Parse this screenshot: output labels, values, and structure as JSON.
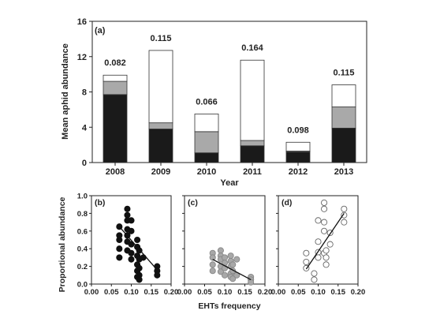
{
  "chart_data": [
    {
      "type": "bar",
      "stacked": true,
      "panel_label": "(a)",
      "xlabel": "Year",
      "ylabel": "Mean aphid abundance",
      "ylim": [
        0,
        16
      ],
      "yticks": [
        "0",
        "4",
        "8",
        "12",
        "16"
      ],
      "categories": [
        "2008",
        "2009",
        "2010",
        "2011",
        "2012",
        "2013"
      ],
      "annotations": [
        "0.082",
        "0.115",
        "0.066",
        "0.164",
        "0.098",
        "0.115"
      ],
      "series": [
        {
          "color": "#1a1a1a",
          "values": [
            7.7,
            3.8,
            1.1,
            1.9,
            1.2,
            3.9
          ]
        },
        {
          "color": "#a9a9a9",
          "values": [
            1.5,
            0.7,
            2.4,
            0.6,
            0.1,
            2.4
          ]
        },
        {
          "color": "#ffffff",
          "values": [
            0.7,
            8.2,
            2.0,
            9.1,
            1.0,
            2.5
          ]
        }
      ]
    },
    {
      "type": "scatter",
      "panel_label": "(b)",
      "marker": "filled-black",
      "xlim": [
        0,
        0.2
      ],
      "ylim": [
        0,
        1.0
      ],
      "points": [
        [
          0.07,
          0.3
        ],
        [
          0.07,
          0.4
        ],
        [
          0.07,
          0.5
        ],
        [
          0.07,
          0.55
        ],
        [
          0.07,
          0.65
        ],
        [
          0.09,
          0.85
        ],
        [
          0.09,
          0.78
        ],
        [
          0.09,
          0.72
        ],
        [
          0.09,
          0.62
        ],
        [
          0.09,
          0.55
        ],
        [
          0.09,
          0.48
        ],
        [
          0.09,
          0.38
        ],
        [
          0.1,
          0.72
        ],
        [
          0.1,
          0.6
        ],
        [
          0.1,
          0.45
        ],
        [
          0.1,
          0.35
        ],
        [
          0.1,
          0.28
        ],
        [
          0.115,
          0.5
        ],
        [
          0.115,
          0.42
        ],
        [
          0.115,
          0.32
        ],
        [
          0.115,
          0.22
        ],
        [
          0.115,
          0.15
        ],
        [
          0.115,
          0.08
        ],
        [
          0.12,
          0.38
        ],
        [
          0.12,
          0.28
        ],
        [
          0.12,
          0.18
        ],
        [
          0.12,
          0.1
        ],
        [
          0.12,
          0.05
        ],
        [
          0.13,
          0.3
        ],
        [
          0.165,
          0.2
        ],
        [
          0.165,
          0.15
        ],
        [
          0.165,
          0.1
        ]
      ],
      "fit": [
        [
          0.07,
          0.65
        ],
        [
          0.165,
          0.16
        ]
      ]
    },
    {
      "type": "scatter",
      "panel_label": "(c)",
      "marker": "filled-grey",
      "xlim": [
        0,
        0.2
      ],
      "ylim": [
        0,
        1.0
      ],
      "points": [
        [
          0.07,
          0.35
        ],
        [
          0.07,
          0.3
        ],
        [
          0.07,
          0.22
        ],
        [
          0.07,
          0.15
        ],
        [
          0.09,
          0.38
        ],
        [
          0.09,
          0.32
        ],
        [
          0.09,
          0.28
        ],
        [
          0.09,
          0.2
        ],
        [
          0.09,
          0.14
        ],
        [
          0.1,
          0.3
        ],
        [
          0.1,
          0.24
        ],
        [
          0.1,
          0.18
        ],
        [
          0.1,
          0.1
        ],
        [
          0.115,
          0.32
        ],
        [
          0.115,
          0.26
        ],
        [
          0.115,
          0.2
        ],
        [
          0.115,
          0.12
        ],
        [
          0.115,
          0.08
        ],
        [
          0.12,
          0.22
        ],
        [
          0.12,
          0.15
        ],
        [
          0.12,
          0.06
        ],
        [
          0.13,
          0.28
        ],
        [
          0.13,
          0.1
        ],
        [
          0.165,
          0.08
        ],
        [
          0.165,
          0.05
        ],
        [
          0.165,
          0.02
        ]
      ],
      "fit": [
        [
          0.07,
          0.28
        ],
        [
          0.165,
          0.05
        ]
      ]
    },
    {
      "type": "scatter",
      "panel_label": "(d)",
      "marker": "open",
      "xlim": [
        0,
        0.2
      ],
      "ylim": [
        0,
        1.0
      ],
      "points": [
        [
          0.07,
          0.35
        ],
        [
          0.07,
          0.25
        ],
        [
          0.07,
          0.18
        ],
        [
          0.09,
          0.12
        ],
        [
          0.09,
          0.05
        ],
        [
          0.1,
          0.72
        ],
        [
          0.1,
          0.48
        ],
        [
          0.1,
          0.36
        ],
        [
          0.1,
          0.3
        ],
        [
          0.115,
          0.92
        ],
        [
          0.115,
          0.85
        ],
        [
          0.115,
          0.7
        ],
        [
          0.115,
          0.6
        ],
        [
          0.115,
          0.35
        ],
        [
          0.12,
          0.38
        ],
        [
          0.12,
          0.3
        ],
        [
          0.12,
          0.22
        ],
        [
          0.13,
          0.58
        ],
        [
          0.13,
          0.45
        ],
        [
          0.165,
          0.85
        ],
        [
          0.165,
          0.78
        ],
        [
          0.165,
          0.7
        ]
      ],
      "fit": [
        [
          0.07,
          0.17
        ],
        [
          0.165,
          0.8
        ]
      ]
    }
  ],
  "lower_axes": {
    "ylabel": "Proportional abundance",
    "xlabel": "EHTs frequency",
    "yticks": [
      "0.0",
      "0.2",
      "0.4",
      "0.6",
      "0.8",
      "1.0"
    ],
    "xticks": [
      "0.00",
      "0.05",
      "0.10",
      "0.15",
      "0.20"
    ]
  }
}
